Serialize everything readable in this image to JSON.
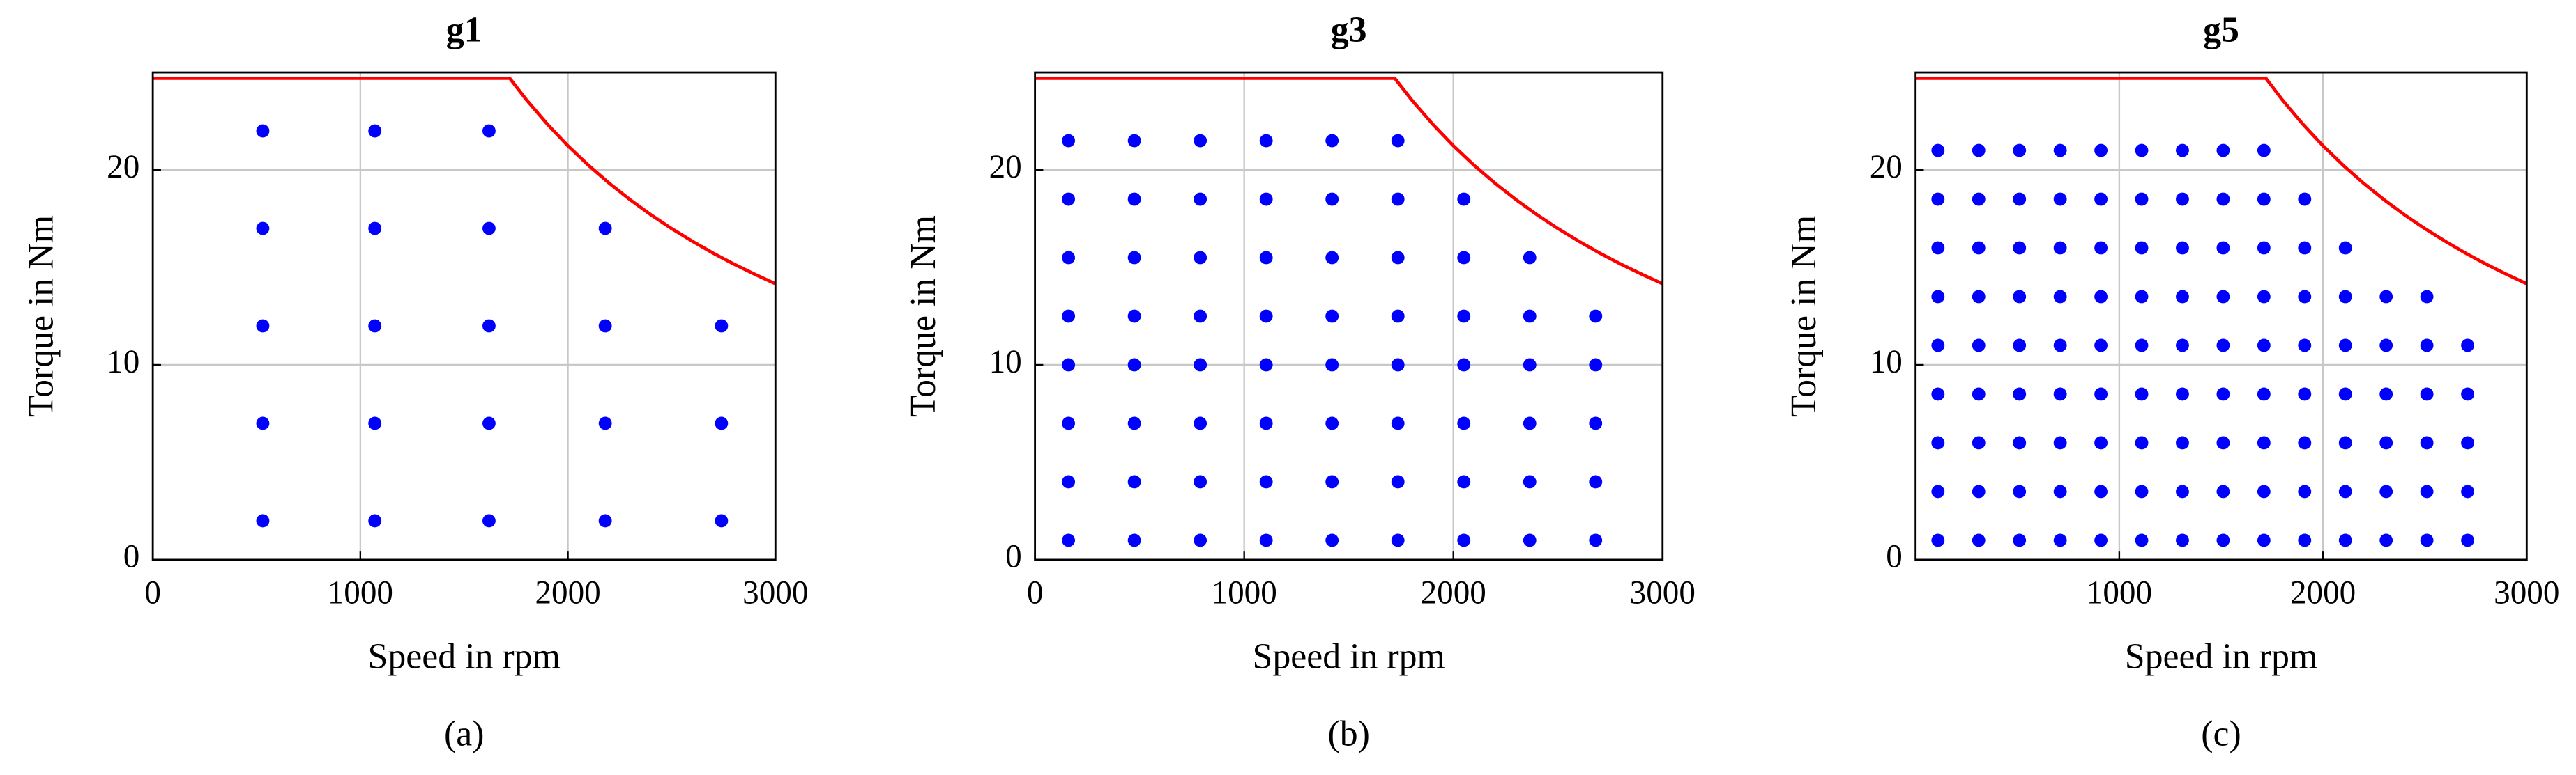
{
  "chart_data": [
    {
      "type": "scatter",
      "title": "g1",
      "xlabel": "Speed in rpm",
      "ylabel": "Torque in Nm",
      "caption": "(a)",
      "xlim": [
        0,
        3000
      ],
      "ylim": [
        0,
        25
      ],
      "xticks": [
        0,
        1000,
        2000,
        3000
      ],
      "yticks": [
        0,
        10,
        20
      ],
      "grid": true,
      "points": {
        "color": "#0000ff",
        "x": [
          530,
          1070,
          1620,
          530,
          1070,
          1620,
          2180,
          530,
          1070,
          1620,
          2180,
          2740,
          530,
          1070,
          1620,
          2180,
          2740,
          530,
          1070,
          1620,
          2180,
          2740
        ],
        "y": [
          22,
          22,
          22,
          17,
          17,
          17,
          17,
          12,
          12,
          12,
          12,
          12,
          7,
          7,
          7,
          7,
          7,
          2,
          2,
          2,
          2,
          2
        ]
      },
      "limit_curve": {
        "color": "#ff0000",
        "x": [
          0,
          1720,
          1800,
          1900,
          2000,
          2100,
          2200,
          2300,
          2400,
          2500,
          2600,
          2700,
          2800,
          2900,
          3000
        ],
        "y": [
          24.7,
          24.7,
          23.6,
          22.36,
          21.24,
          20.23,
          19.31,
          18.47,
          17.7,
          16.99,
          16.34,
          15.73,
          15.17,
          14.65,
          14.16
        ]
      }
    },
    {
      "type": "scatter",
      "title": "g3",
      "xlabel": "Speed in rpm",
      "ylabel": "Torque in Nm",
      "caption": "(b)",
      "xlim": [
        0,
        3000
      ],
      "ylim": [
        0,
        25
      ],
      "xticks": [
        0,
        1000,
        2000,
        3000
      ],
      "yticks": [
        0,
        10,
        20
      ],
      "grid": true,
      "points": {
        "color": "#0000ff",
        "x": [
          160,
          475,
          790,
          1105,
          1420,
          1735,
          160,
          475,
          790,
          1105,
          1420,
          1735,
          2050,
          160,
          475,
          790,
          1105,
          1420,
          1735,
          2050,
          2365,
          160,
          475,
          790,
          1105,
          1420,
          1735,
          2050,
          2365,
          2680,
          160,
          475,
          790,
          1105,
          1420,
          1735,
          2050,
          2365,
          2680,
          160,
          475,
          790,
          1105,
          1420,
          1735,
          2050,
          2365,
          2680,
          160,
          475,
          790,
          1105,
          1420,
          1735,
          2050,
          2365,
          2680,
          160,
          475,
          790,
          1105,
          1420,
          1735,
          2050,
          2365,
          2680
        ],
        "y": [
          21.5,
          21.5,
          21.5,
          21.5,
          21.5,
          21.5,
          18.5,
          18.5,
          18.5,
          18.5,
          18.5,
          18.5,
          18.5,
          15.5,
          15.5,
          15.5,
          15.5,
          15.5,
          15.5,
          15.5,
          15.5,
          12.5,
          12.5,
          12.5,
          12.5,
          12.5,
          12.5,
          12.5,
          12.5,
          12.5,
          10,
          10,
          10,
          10,
          10,
          10,
          10,
          10,
          10,
          7,
          7,
          7,
          7,
          7,
          7,
          7,
          7,
          7,
          4,
          4,
          4,
          4,
          4,
          4,
          4,
          4,
          4,
          1,
          1,
          1,
          1,
          1,
          1,
          1,
          1,
          1
        ]
      },
      "limit_curve": {
        "color": "#ff0000",
        "x": [
          0,
          1720,
          1800,
          1900,
          2000,
          2100,
          2200,
          2300,
          2400,
          2500,
          2600,
          2700,
          2800,
          2900,
          3000
        ],
        "y": [
          24.7,
          24.7,
          23.6,
          22.36,
          21.24,
          20.23,
          19.31,
          18.47,
          17.7,
          16.99,
          16.34,
          15.73,
          15.17,
          14.65,
          14.16
        ]
      }
    },
    {
      "type": "scatter",
      "title": "g5",
      "xlabel": "Speed in rpm",
      "ylabel": "Torque in Nm",
      "caption": "(c)",
      "xlim": [
        0,
        3000
      ],
      "ylim": [
        0,
        25
      ],
      "xticks": [
        1000,
        2000,
        3000
      ],
      "yticks": [
        0,
        10,
        20
      ],
      "grid": true,
      "points": {
        "color": "#0000ff",
        "x": [
          110,
          310,
          510,
          710,
          910,
          1110,
          1310,
          1510,
          1710,
          110,
          310,
          510,
          710,
          910,
          1110,
          1310,
          1510,
          1710,
          1910,
          110,
          310,
          510,
          710,
          910,
          1110,
          1310,
          1510,
          1710,
          1910,
          2110,
          110,
          310,
          510,
          710,
          910,
          1110,
          1310,
          1510,
          1710,
          1910,
          2110,
          2310,
          2510,
          110,
          310,
          510,
          710,
          910,
          1110,
          1310,
          1510,
          1710,
          1910,
          2110,
          2310,
          2510,
          2710,
          110,
          310,
          510,
          710,
          910,
          1110,
          1310,
          1510,
          1710,
          1910,
          2110,
          2310,
          2510,
          2710,
          110,
          310,
          510,
          710,
          910,
          1110,
          1310,
          1510,
          1710,
          1910,
          2110,
          2310,
          2510,
          2710,
          110,
          310,
          510,
          710,
          910,
          1110,
          1310,
          1510,
          1710,
          1910,
          2110,
          2310,
          2510,
          2710,
          110,
          310,
          510,
          710,
          910,
          1110,
          1310,
          1510,
          1710,
          1910,
          2110,
          2310,
          2510,
          2710
        ],
        "y": [
          21,
          21,
          21,
          21,
          21,
          21,
          21,
          21,
          21,
          18.5,
          18.5,
          18.5,
          18.5,
          18.5,
          18.5,
          18.5,
          18.5,
          18.5,
          18.5,
          16,
          16,
          16,
          16,
          16,
          16,
          16,
          16,
          16,
          16,
          16,
          13.5,
          13.5,
          13.5,
          13.5,
          13.5,
          13.5,
          13.5,
          13.5,
          13.5,
          13.5,
          13.5,
          13.5,
          13.5,
          11,
          11,
          11,
          11,
          11,
          11,
          11,
          11,
          11,
          11,
          11,
          11,
          11,
          11,
          8.5,
          8.5,
          8.5,
          8.5,
          8.5,
          8.5,
          8.5,
          8.5,
          8.5,
          8.5,
          8.5,
          8.5,
          8.5,
          8.5,
          6,
          6,
          6,
          6,
          6,
          6,
          6,
          6,
          6,
          6,
          6,
          6,
          6,
          6,
          3.5,
          3.5,
          3.5,
          3.5,
          3.5,
          3.5,
          3.5,
          3.5,
          3.5,
          3.5,
          3.5,
          3.5,
          3.5,
          3.5,
          1,
          1,
          1,
          1,
          1,
          1,
          1,
          1,
          1,
          1,
          1,
          1,
          1,
          1
        ]
      },
      "limit_curve": {
        "color": "#ff0000",
        "x": [
          0,
          1720,
          1800,
          1900,
          2000,
          2100,
          2200,
          2300,
          2400,
          2500,
          2600,
          2700,
          2800,
          2900,
          3000
        ],
        "y": [
          24.7,
          24.7,
          23.6,
          22.36,
          21.24,
          20.23,
          19.31,
          18.47,
          17.7,
          16.99,
          16.34,
          15.73,
          15.17,
          14.65,
          14.16
        ]
      }
    }
  ]
}
